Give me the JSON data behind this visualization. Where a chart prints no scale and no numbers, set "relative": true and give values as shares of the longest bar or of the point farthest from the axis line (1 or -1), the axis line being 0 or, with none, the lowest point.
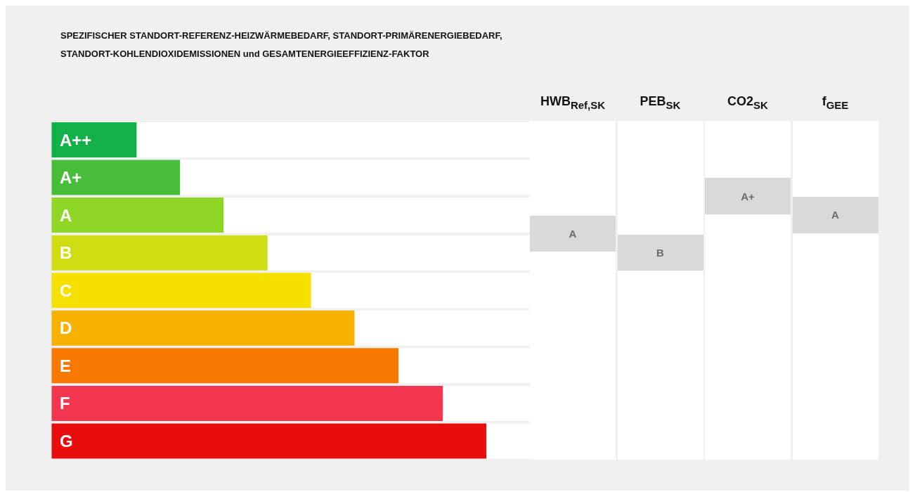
{
  "chart_data": {
    "type": "bar",
    "orientation": "horizontal",
    "relative": true,
    "title": "SPEZIFISCHER STANDORT-REFERENZ-HEIZWÄRMEBEDARF, STANDORT-PRIMÄRENERGIEBEDARF, STANDORT-KOHLENDIOXIDEMISSIONEN und GESAMTENERGIEEFFIZIENZ-FAKTOR",
    "categories": [
      "A++",
      "A+",
      "A",
      "B",
      "C",
      "D",
      "E",
      "F",
      "G"
    ],
    "values": [
      0.196,
      0.296,
      0.396,
      0.497,
      0.597,
      0.697,
      0.798,
      0.9,
      1
    ],
    "colors": [
      "#14b04a",
      "#48bd3c",
      "#8fd626",
      "#cede12",
      "#f6e000",
      "#f7b200",
      "#f77902",
      "#f2364f",
      "#e80e0e"
    ],
    "annotations": [
      "HWB$_{Ref,SK}$",
      "A",
      "PEB$_{SK}$",
      "B",
      "CO2$_{SK}$",
      "A+",
      "f$_{GEE}$",
      "A"
    ]
  }
}
